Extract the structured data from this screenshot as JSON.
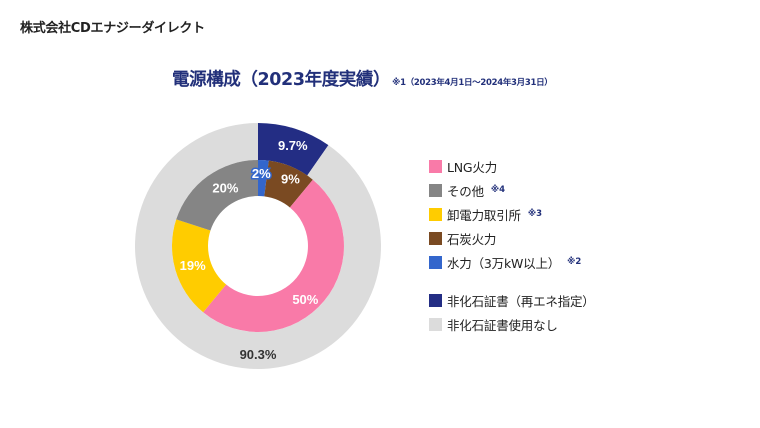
{
  "company_name": "株式会社CDエナジーダイレクト",
  "title": "電源構成（2023年度実績）",
  "title_note": "※1（2023年4月1日〜2024年3月31日）",
  "chart_data": {
    "type": "pie",
    "subtype": "nested-donut",
    "title": "電源構成（2023年度実績）",
    "subtitle": "※1（2023年4月1日〜2024年3月31日）",
    "legend_position": "right",
    "rings": [
      {
        "name": "inner",
        "start": "top",
        "direction": "clockwise",
        "slices": [
          {
            "label": "水力（3万kW以上）",
            "value": 2,
            "display": "2%",
            "color": "#3366cc",
            "text_color": "#ffffff"
          },
          {
            "label": "石炭火力",
            "value": 9,
            "display": "9%",
            "color": "#7a4a22",
            "text_color": "#ffffff"
          },
          {
            "label": "LNG火力",
            "value": 50,
            "display": "50%",
            "color": "#f97aa8",
            "text_color": "#ffffff"
          },
          {
            "label": "卸電力取引所",
            "value": 19,
            "display": "19%",
            "color": "#ffcc00",
            "text_color": "#ffffff"
          },
          {
            "label": "その他",
            "value": 20,
            "display": "20%",
            "color": "#858585",
            "text_color": "#ffffff"
          }
        ]
      },
      {
        "name": "outer",
        "start": "top",
        "direction": "clockwise",
        "slices": [
          {
            "label": "非化石証書（再エネ指定）",
            "value": 9.7,
            "display": "9.7%",
            "color": "#232d84",
            "text_color": "#ffffff"
          },
          {
            "label": "非化石証書使用なし",
            "value": 90.3,
            "display": "90.3%",
            "color": "#dcdcdc",
            "text_color": "#333333"
          }
        ]
      }
    ]
  },
  "legend": [
    {
      "label": "LNG火力",
      "color": "#f97aa8",
      "note": ""
    },
    {
      "label": "その他",
      "color": "#858585",
      "note": "※4"
    },
    {
      "label": "卸電力取引所",
      "color": "#ffcc00",
      "note": "※3"
    },
    {
      "label": "石炭火力",
      "color": "#7a4a22",
      "note": ""
    },
    {
      "label": "水力（3万kW以上）",
      "color": "#3366cc",
      "note": "※2"
    },
    {
      "label": "非化石証書（再エネ指定）",
      "color": "#232d84",
      "note": ""
    },
    {
      "label": "非化石証書使用なし",
      "color": "#dcdcdc",
      "note": ""
    }
  ]
}
